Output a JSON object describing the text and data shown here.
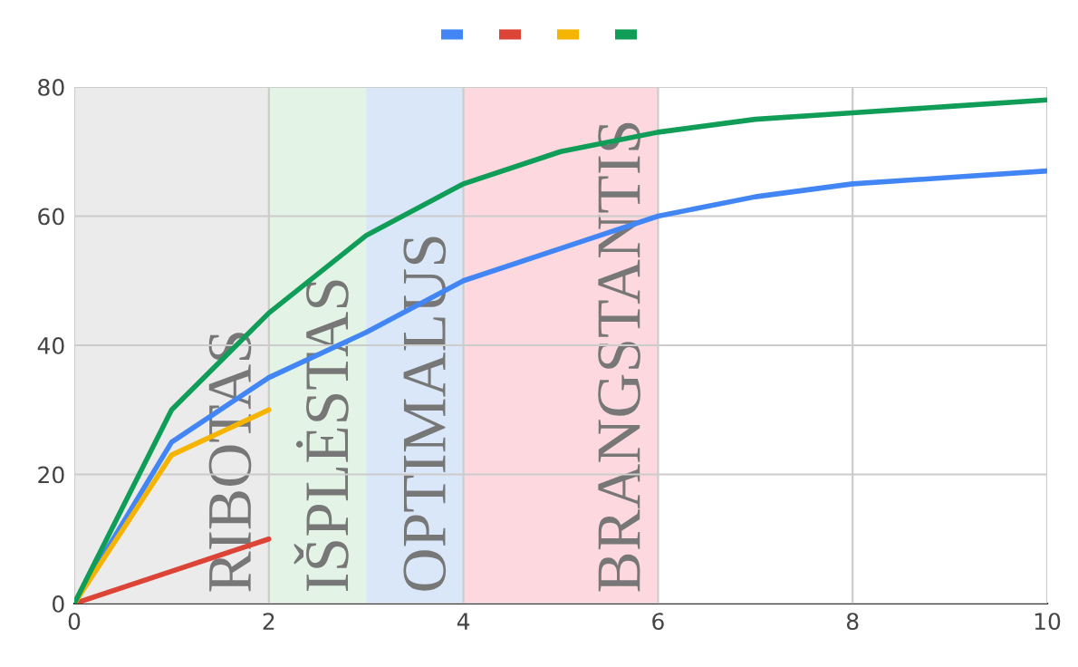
{
  "chart_data": {
    "type": "line",
    "x": [
      0,
      1,
      2,
      3,
      4,
      5,
      6,
      7,
      8,
      9,
      10
    ],
    "series": [
      {
        "color": "#4285f4",
        "values": [
          0,
          25,
          35,
          42,
          50,
          55,
          60,
          63,
          65,
          66,
          67
        ]
      },
      {
        "color": "#db4437",
        "values": [
          0,
          5,
          10,
          null,
          null,
          null,
          null,
          null,
          null,
          null,
          null
        ]
      },
      {
        "color": "#f4b400",
        "values": [
          0,
          23,
          30,
          null,
          null,
          null,
          null,
          null,
          null,
          null,
          null
        ]
      },
      {
        "color": "#0f9d58",
        "values": [
          0,
          30,
          45,
          57,
          65,
          70,
          73,
          75,
          76,
          77,
          78
        ]
      }
    ],
    "bands": [
      {
        "axis": "x",
        "from": 0,
        "to": 2,
        "label": "RIBOTAS",
        "color": "#ebebeb"
      },
      {
        "axis": "x",
        "from": 2,
        "to": 3,
        "label": "IŠPLĖSTAS",
        "color": "#e3f4e6"
      },
      {
        "axis": "x",
        "from": 3,
        "to": 4,
        "label": "OPTIMALUS",
        "color": "#dae7f8"
      },
      {
        "axis": "x",
        "from": 4,
        "to": 6,
        "label": "BRANGSTANTIS",
        "color": "#fdd9df"
      }
    ],
    "xlim": [
      0,
      10
    ],
    "xticks": [
      0,
      2,
      4,
      6,
      8,
      10
    ],
    "ylim": [
      0,
      80
    ],
    "yticks": [
      0,
      20,
      40,
      60,
      80
    ],
    "grid": true,
    "marker": "none",
    "line_style": "solid"
  }
}
